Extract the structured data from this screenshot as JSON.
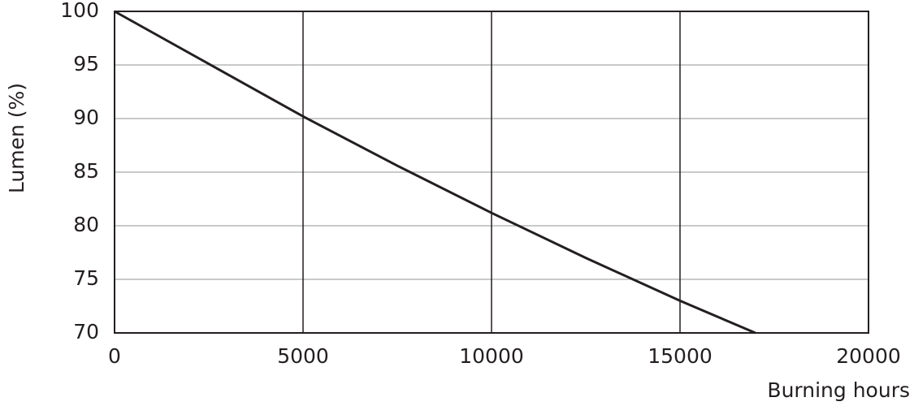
{
  "chart_data": {
    "type": "line",
    "x_label": "Burning hours",
    "y_label": "Lumen (%)",
    "x": [
      0,
      2500,
      5000,
      7500,
      10000,
      12500,
      15000,
      17000
    ],
    "values": [
      100,
      95.1,
      90.2,
      85.6,
      81.2,
      77,
      73,
      70
    ],
    "color": "#231f20",
    "xlim": [
      0,
      20000
    ],
    "xticks": [
      0,
      5000,
      10000,
      15000,
      20000
    ],
    "ylim": [
      70,
      100
    ],
    "yticks": [
      70,
      75,
      80,
      85,
      90,
      95,
      100
    ],
    "grid": true
  }
}
